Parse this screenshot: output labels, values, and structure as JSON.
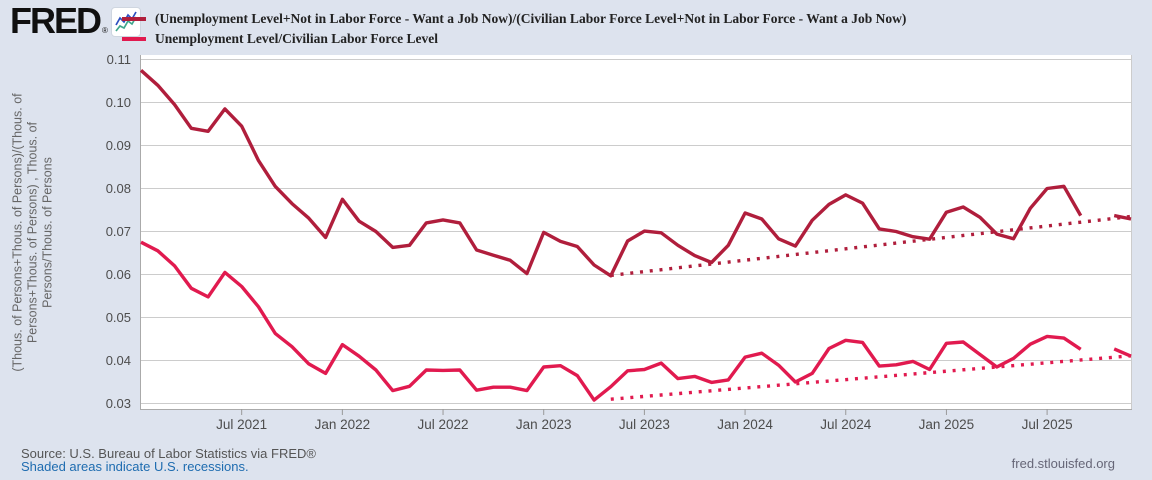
{
  "header": {
    "logo_text": "FRED",
    "logo_registered": "®"
  },
  "footer": {
    "source": "Source: U.S. Bureau of Labor Statistics via FRED®",
    "recession_note": "Shaded areas indicate U.S. recessions.",
    "site": "fred.stlouisfed.org"
  },
  "chart_data": {
    "type": "line",
    "ylabel": "(Thous. of Persons+Thous. of Persons)/(Thous. of Persons+Thous. of Persons) , Thous. of Persons/Thous. of Persons",
    "ylim": [
      0.0287,
      0.11
    ],
    "yticks": [
      "0.11",
      "0.10",
      "0.09",
      "0.08",
      "0.07",
      "0.06",
      "0.05",
      "0.04",
      "0.03"
    ],
    "x_range": "Jan 2021 - Dec 2025, monthly; Oct 2025 value missing (data gap)",
    "xticks": [
      {
        "label": "Jul 2021",
        "i": 6
      },
      {
        "label": "Jan 2022",
        "i": 12
      },
      {
        "label": "Jul 2022",
        "i": 18
      },
      {
        "label": "Jan 2023",
        "i": 24
      },
      {
        "label": "Jul 2023",
        "i": 30
      },
      {
        "label": "Jan 2024",
        "i": 36
      },
      {
        "label": "Jul 2024",
        "i": 42
      },
      {
        "label": "Jan 2025",
        "i": 48
      },
      {
        "label": "Jul 2025",
        "i": 54
      }
    ],
    "grid": true,
    "legend_position": "top-left",
    "colors": {
      "page_bg": "#dde3ee",
      "plot_bg": "#ffffff",
      "grid": "#cccccc",
      "axis_line": "#aaaaaa",
      "axis_text": "#4d4d4d",
      "series1": "#b01e3c",
      "series2": "#e11a4f",
      "link": "#1e6cb0"
    },
    "series": [
      {
        "name": "(Unemployment Level+Not in Labor Force - Want a Job Now)/(Civilian Labor Force Level+Not in Labor Force - Want a Job Now)",
        "color": "#b01e3c",
        "style": "solid",
        "values": [
          0.1075,
          0.104,
          0.0995,
          0.094,
          0.0933,
          0.0985,
          0.0945,
          0.0865,
          0.0805,
          0.0765,
          0.0731,
          0.0686,
          0.0775,
          0.0724,
          0.07,
          0.0663,
          0.0668,
          0.072,
          0.0727,
          0.072,
          0.0657,
          0.0645,
          0.0633,
          0.0602,
          0.0698,
          0.0677,
          0.0665,
          0.0622,
          0.0597,
          0.0678,
          0.0701,
          0.0697,
          0.0668,
          0.0644,
          0.0628,
          0.0668,
          0.0743,
          0.0729,
          0.0683,
          0.0666,
          0.0726,
          0.0763,
          0.0785,
          0.0766,
          0.0706,
          0.07,
          0.0688,
          0.0682,
          0.0745,
          0.0757,
          0.0733,
          0.0694,
          0.0683,
          0.0754,
          0.08,
          0.0805,
          0.0737,
          null,
          0.0737,
          0.0729
        ]
      },
      {
        "name": "Unemployment Level/Civilian Labor Force Level",
        "color": "#e11a4f",
        "style": "solid",
        "values": [
          0.0675,
          0.0655,
          0.062,
          0.0568,
          0.0548,
          0.0605,
          0.0572,
          0.0525,
          0.0463,
          0.0432,
          0.0392,
          0.037,
          0.0437,
          0.041,
          0.0378,
          0.033,
          0.034,
          0.0378,
          0.0377,
          0.0378,
          0.0331,
          0.0338,
          0.0338,
          0.033,
          0.0385,
          0.0388,
          0.0365,
          0.0308,
          0.0339,
          0.0376,
          0.0379,
          0.0394,
          0.0358,
          0.0363,
          0.0349,
          0.0355,
          0.0408,
          0.0417,
          0.0389,
          0.035,
          0.037,
          0.0428,
          0.0447,
          0.0442,
          0.0387,
          0.039,
          0.0398,
          0.0379,
          0.044,
          0.0443,
          0.0414,
          0.0385,
          0.0405,
          0.0438,
          0.0456,
          0.0452,
          0.0426,
          null,
          0.0427,
          0.041
        ]
      },
      {
        "name": "Dotted linear trend of series 1 (May 2023 - Dec 2025)",
        "color": "#b01e3c",
        "style": "dotted",
        "points": [
          [
            28,
            0.0598
          ],
          [
            59,
            0.0735
          ]
        ]
      },
      {
        "name": "Dotted linear trend of series 2 (May 2023 - Dec 2025)",
        "color": "#e11a4f",
        "style": "dotted",
        "points": [
          [
            28,
            0.031
          ],
          [
            59,
            0.0411
          ]
        ]
      }
    ]
  }
}
